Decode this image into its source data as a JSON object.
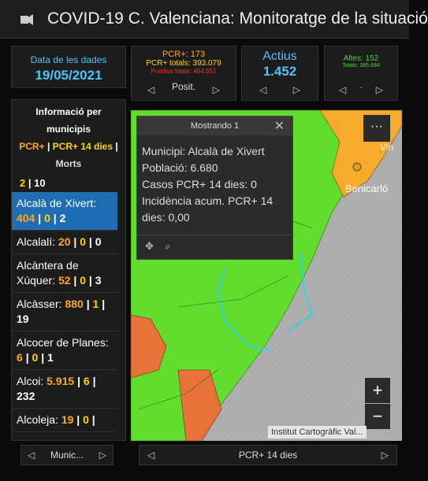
{
  "header": {
    "title": "COVID-19 C. Valenciana: Monitoratge de la situació"
  },
  "panels": {
    "date": {
      "label": "Data de les dades",
      "value": "19/05/2021"
    },
    "pcr": {
      "line1": "PCR+: 173",
      "line2": "PCR+ totals: 393.079",
      "line3": "Positius totals: 404.551",
      "nav": "Posit."
    },
    "active": {
      "label": "Actius",
      "value": "1.452"
    },
    "discharged": {
      "line1": "Altes: 152",
      "line2": "Totals: 395.684",
      "nav": "."
    }
  },
  "list": {
    "title": "Informació per municipis",
    "legend": {
      "pcr": "PCR+",
      "pcr14": "PCR+ 14 dies",
      "morts": "Morts"
    },
    "separator": "|",
    "partial_row": {
      "pcr14": "2",
      "morts": "10"
    },
    "items": [
      {
        "name": "Alcalà de Xivert:",
        "pcr": "404",
        "pcr14": "0",
        "morts": "2"
      },
      {
        "name": "Alcalalí:",
        "pcr": "20",
        "pcr14": "0",
        "morts": "0"
      },
      {
        "name": "Alcàntera de Xúquer:",
        "pcr": "52",
        "pcr14": "0",
        "morts": "3"
      },
      {
        "name": "Alcàsser:",
        "pcr": "880",
        "pcr14": "1",
        "morts": "19"
      },
      {
        "name": "Alcocer de Planes:",
        "pcr": "6",
        "pcr14": "0",
        "morts": "1"
      },
      {
        "name": "Alcoi:",
        "pcr": "5.915",
        "pcr14": "6",
        "morts": "232"
      },
      {
        "name": "Alcoleja:",
        "pcr": "19",
        "pcr14": "0"
      }
    ],
    "nav": "Munic..."
  },
  "map": {
    "popup": {
      "title": "Mostrando 1",
      "lines": [
        "Municipi: Alcalà de Xivert",
        "Població: 6.680",
        "Casos PCR+ 14 dies: 0",
        "Incidència acum. PCR+ 14 dies: 0,00"
      ]
    },
    "labels": {
      "vin": "Vin",
      "benicarlo": "Benicarló"
    },
    "attribution": "Institut Cartogràfic Val...",
    "zoom_in": "+",
    "zoom_out": "−",
    "more": "···",
    "nav": "PCR+ 14 dies"
  }
}
